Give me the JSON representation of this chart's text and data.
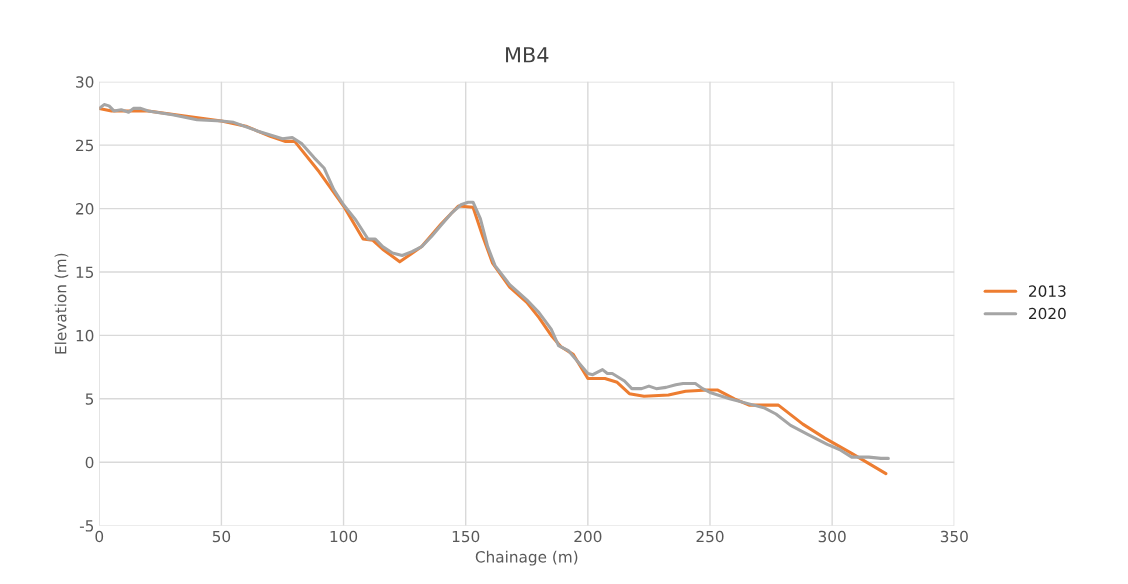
{
  "chart_data": {
    "type": "line",
    "title": "MB4",
    "xlabel": "Chainage (m)",
    "ylabel": "Elevation (m)",
    "xlim": [
      0,
      350
    ],
    "ylim": [
      -5,
      30
    ],
    "xticks": [
      0,
      50,
      100,
      150,
      200,
      250,
      300,
      350
    ],
    "yticks": [
      -5,
      0,
      5,
      10,
      15,
      20,
      25,
      30
    ],
    "grid": true,
    "legend": "right",
    "marker": "none",
    "line_style": "solid",
    "series": [
      {
        "name": "2013",
        "color": "#ed7d31",
        "x": [
          0,
          5,
          10,
          20,
          35,
          50,
          60,
          70,
          76,
          80,
          90,
          100,
          108,
          112,
          116,
          123,
          132,
          140,
          147,
          153,
          157,
          161,
          168,
          175,
          180,
          185,
          189,
          194,
          200,
          207,
          212,
          217,
          223,
          233,
          240,
          249,
          253,
          260,
          266,
          278,
          288,
          297,
          308,
          322
        ],
        "values": [
          27.9,
          27.7,
          27.7,
          27.7,
          27.3,
          26.9,
          26.5,
          25.7,
          25.3,
          25.3,
          22.9,
          20.2,
          17.6,
          17.5,
          16.8,
          15.8,
          17.0,
          18.8,
          20.2,
          20.1,
          17.8,
          15.7,
          13.8,
          12.6,
          11.4,
          10.0,
          9.1,
          8.5,
          6.6,
          6.6,
          6.3,
          5.4,
          5.2,
          5.3,
          5.6,
          5.7,
          5.7,
          5.0,
          4.5,
          4.5,
          3.0,
          1.9,
          0.7,
          -0.9
        ]
      },
      {
        "name": "2020",
        "color": "#a5a5a5",
        "x": [
          0,
          2,
          4,
          6,
          9,
          12,
          14,
          17,
          20,
          30,
          40,
          50,
          55,
          65,
          75,
          79,
          83,
          88,
          92,
          96,
          100,
          105,
          110,
          113,
          116,
          120,
          124,
          128,
          132,
          136,
          140,
          144,
          148,
          151,
          153,
          156,
          159,
          162,
          168,
          175,
          180,
          185,
          188,
          192,
          196,
          200,
          202,
          206,
          208,
          210,
          215,
          218,
          222,
          225,
          228,
          232,
          236,
          239,
          244,
          247,
          250,
          258,
          266,
          272,
          277,
          283,
          290,
          298,
          303,
          308,
          315,
          320,
          323
        ],
        "values": [
          27.9,
          28.2,
          28.1,
          27.7,
          27.8,
          27.6,
          27.9,
          27.9,
          27.7,
          27.4,
          27.0,
          26.9,
          26.8,
          26.1,
          25.5,
          25.6,
          25.1,
          24.0,
          23.2,
          21.5,
          20.3,
          19.1,
          17.6,
          17.6,
          17.0,
          16.5,
          16.3,
          16.6,
          17.0,
          17.8,
          18.7,
          19.6,
          20.3,
          20.5,
          20.5,
          19.2,
          17.0,
          15.5,
          14.0,
          12.8,
          11.8,
          10.5,
          9.2,
          8.8,
          7.9,
          7.0,
          6.9,
          7.3,
          7.0,
          7.0,
          6.4,
          5.8,
          5.8,
          6.0,
          5.8,
          5.9,
          6.1,
          6.2,
          6.2,
          5.8,
          5.5,
          5.0,
          4.6,
          4.3,
          3.8,
          2.9,
          2.2,
          1.4,
          1.0,
          0.4,
          0.4,
          0.3,
          0.3
        ]
      }
    ]
  }
}
